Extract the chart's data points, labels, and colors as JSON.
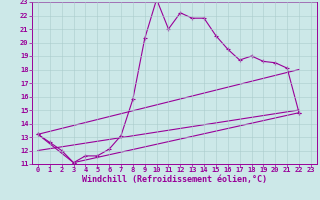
{
  "xlabel": "Windchill (Refroidissement éolien,°C)",
  "bg_color": "#cce8e8",
  "line_color": "#990099",
  "grid_color": "#aacccc",
  "xlim": [
    -0.5,
    23.5
  ],
  "ylim": [
    11,
    23
  ],
  "yticks": [
    11,
    12,
    13,
    14,
    15,
    16,
    17,
    18,
    19,
    20,
    21,
    22,
    23
  ],
  "xticks": [
    0,
    1,
    2,
    3,
    4,
    5,
    6,
    7,
    8,
    9,
    10,
    11,
    12,
    13,
    14,
    15,
    16,
    17,
    18,
    19,
    20,
    21,
    22,
    23
  ],
  "series1_x": [
    0,
    1,
    2,
    3,
    4,
    5,
    6,
    7,
    8,
    9,
    10,
    11,
    12,
    13,
    14,
    15,
    16,
    17,
    18,
    19,
    20,
    21,
    22
  ],
  "series1_y": [
    13.2,
    12.6,
    12.0,
    11.1,
    11.6,
    11.6,
    12.1,
    13.1,
    15.8,
    20.3,
    23.2,
    21.0,
    22.2,
    21.8,
    21.8,
    20.5,
    19.5,
    18.7,
    19.0,
    18.6,
    18.5,
    18.1,
    14.8
  ],
  "series2_x": [
    0,
    3,
    22
  ],
  "series2_y": [
    13.2,
    11.1,
    14.8
  ],
  "series3_x": [
    0,
    22
  ],
  "series3_y": [
    13.2,
    18.0
  ],
  "series4_x": [
    0,
    22
  ],
  "series4_y": [
    12.0,
    15.0
  ],
  "tick_fontsize": 5.0,
  "xlabel_fontsize": 6.0
}
